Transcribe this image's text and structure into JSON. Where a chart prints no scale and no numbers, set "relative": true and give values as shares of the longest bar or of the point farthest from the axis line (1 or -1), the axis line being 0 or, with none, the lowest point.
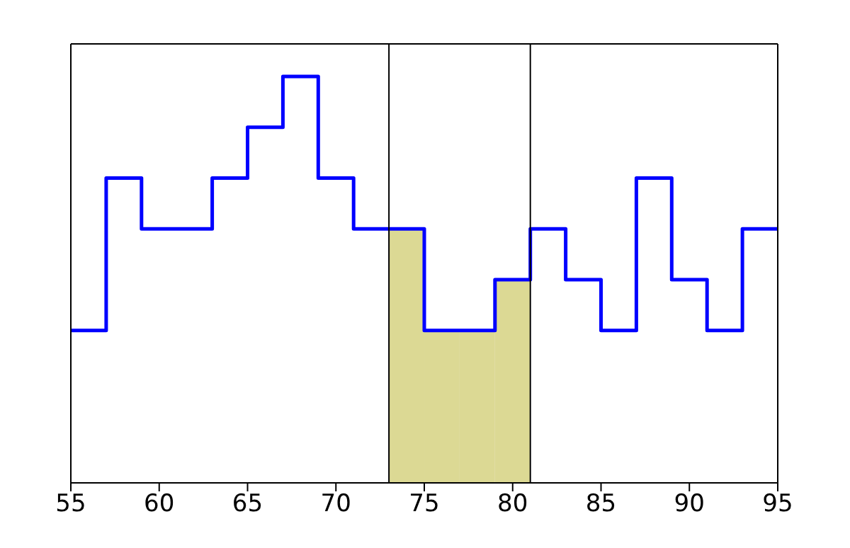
{
  "chart_data": {
    "type": "step",
    "relative": true,
    "x": [
      55,
      57,
      59,
      61,
      63,
      65,
      67,
      69,
      71,
      73,
      75,
      77,
      79,
      81,
      83,
      85,
      87,
      89,
      91,
      93,
      95
    ],
    "series": [
      {
        "color": "#0000ff",
        "values": [
          0.375,
          0.75,
          0.625,
          0.625,
          0.75,
          0.875,
          1,
          0.75,
          0.625,
          0.625,
          0.375,
          0.375,
          0.5,
          0.625,
          0.5,
          0.375,
          0.75,
          0.5,
          0.375,
          0.625,
          0.625
        ]
      },
      {
        "type": "bar",
        "color": "#dcd994",
        "x": [
          74,
          76,
          78,
          80
        ],
        "values": [
          0.625,
          0.375,
          0.375,
          0.5
        ]
      }
    ],
    "xlim": [
      55,
      95
    ],
    "xticks": [
      55,
      60,
      65,
      70,
      75,
      80,
      85,
      90,
      95
    ],
    "ref_lines": [
      {
        "axis": "x",
        "value": 73,
        "color": "#000000"
      },
      {
        "axis": "x",
        "value": 81,
        "color": "#000000"
      }
    ]
  }
}
